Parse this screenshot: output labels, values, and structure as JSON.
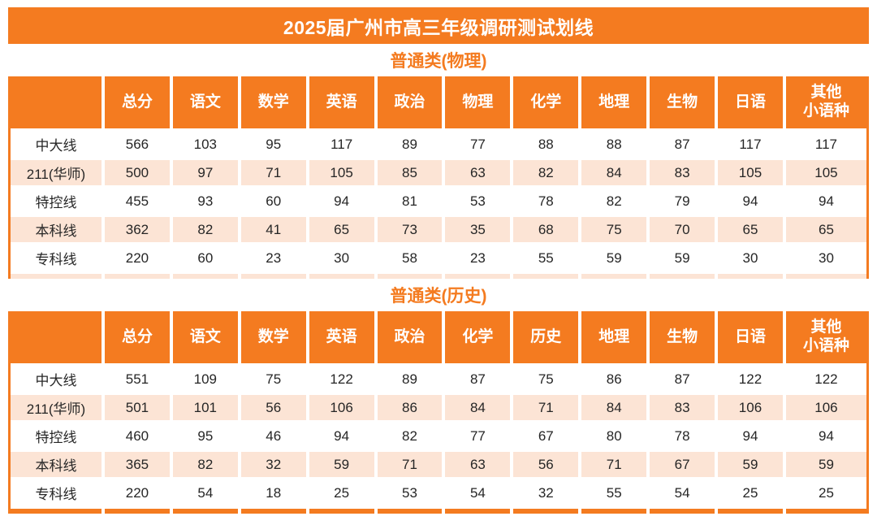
{
  "page": {
    "title": "2025届广州市高三年级调研测试划线",
    "colors": {
      "accent_orange": "#F47B20",
      "stripe_peach": "#FCE4D5",
      "header_text": "#FFFFFF",
      "body_text": "#262626"
    }
  },
  "chart_data": [
    {
      "type": "table",
      "title": "普通类(物理)",
      "columns": [
        "总分",
        "语文",
        "数学",
        "英语",
        "政治",
        "物理",
        "化学",
        "地理",
        "生物",
        "日语",
        "其他\n小语种"
      ],
      "rows": [
        {
          "label": "中大线",
          "values": [
            566,
            103,
            95,
            117,
            89,
            77,
            88,
            88,
            87,
            117,
            117
          ]
        },
        {
          "label": "211(华师)",
          "values": [
            500,
            97,
            71,
            105,
            85,
            63,
            82,
            84,
            83,
            105,
            105
          ]
        },
        {
          "label": "特控线",
          "values": [
            455,
            93,
            60,
            94,
            81,
            53,
            78,
            82,
            79,
            94,
            94
          ]
        },
        {
          "label": "本科线",
          "values": [
            362,
            82,
            41,
            65,
            73,
            35,
            68,
            75,
            70,
            65,
            65
          ]
        },
        {
          "label": "专科线",
          "values": [
            220,
            60,
            23,
            30,
            58,
            23,
            55,
            59,
            59,
            30,
            30
          ]
        }
      ]
    },
    {
      "type": "table",
      "title": "普通类(历史)",
      "columns": [
        "总分",
        "语文",
        "数学",
        "英语",
        "政治",
        "化学",
        "历史",
        "地理",
        "生物",
        "日语",
        "其他\n小语种"
      ],
      "rows": [
        {
          "label": "中大线",
          "values": [
            551,
            109,
            75,
            122,
            89,
            87,
            75,
            86,
            87,
            122,
            122
          ]
        },
        {
          "label": "211(华师)",
          "values": [
            501,
            101,
            56,
            106,
            86,
            84,
            71,
            84,
            83,
            106,
            106
          ]
        },
        {
          "label": "特控线",
          "values": [
            460,
            95,
            46,
            94,
            82,
            77,
            67,
            80,
            78,
            94,
            94
          ]
        },
        {
          "label": "本科线",
          "values": [
            365,
            82,
            32,
            59,
            71,
            63,
            56,
            71,
            67,
            59,
            59
          ]
        },
        {
          "label": "专科线",
          "values": [
            220,
            54,
            18,
            25,
            53,
            54,
            32,
            55,
            54,
            25,
            25
          ]
        }
      ]
    }
  ]
}
